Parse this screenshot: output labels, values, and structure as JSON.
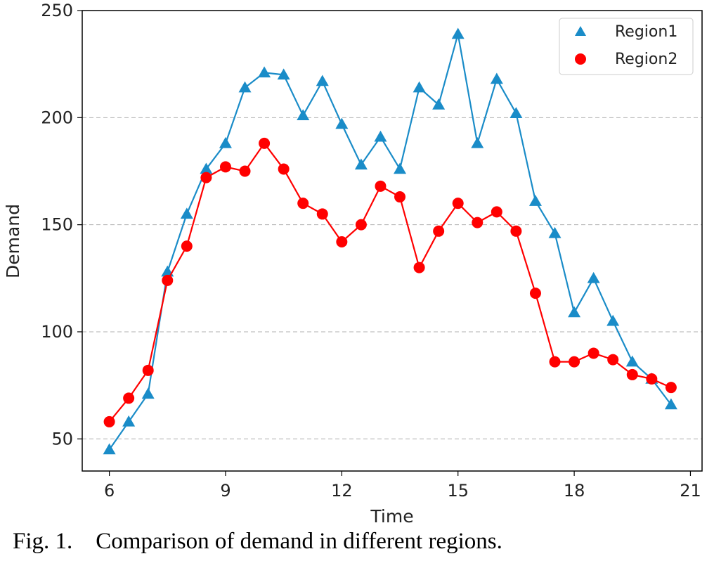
{
  "chart_data": {
    "type": "line",
    "xlabel": "Time",
    "ylabel": "Demand",
    "xlim": [
      5.3,
      21.3
    ],
    "ylim": [
      35,
      250
    ],
    "xticks": [
      6,
      9,
      12,
      15,
      18,
      21
    ],
    "yticks": [
      50,
      100,
      150,
      200,
      250
    ],
    "grid": "horizontal dashed",
    "legend_position": "top-right",
    "x": [
      6,
      6.5,
      7,
      7.5,
      8,
      8.5,
      9,
      9.5,
      10,
      10.5,
      11,
      11.5,
      12,
      12.5,
      13,
      13.5,
      14,
      14.5,
      15,
      15.5,
      16,
      16.5,
      17,
      17.5,
      18,
      18.5,
      19,
      19.5,
      20,
      20.5
    ],
    "series": [
      {
        "name": "Region1",
        "marker": "triangle",
        "color": "#1a8cc8",
        "values": [
          45,
          58,
          71,
          128,
          155,
          176,
          188,
          214,
          221,
          220,
          201,
          217,
          197,
          178,
          191,
          176,
          214,
          206,
          239,
          188,
          218,
          202,
          161,
          146,
          109,
          125,
          105,
          86,
          78,
          66
        ]
      },
      {
        "name": "Region2",
        "marker": "circle",
        "color": "#ff0000",
        "values": [
          58,
          69,
          82,
          124,
          140,
          172,
          177,
          175,
          188,
          176,
          160,
          155,
          142,
          150,
          168,
          163,
          130,
          147,
          160,
          151,
          156,
          147,
          118,
          86,
          86,
          90,
          87,
          80,
          78,
          74
        ]
      }
    ]
  },
  "caption": "Fig. 1.    Comparison of demand in different regions."
}
